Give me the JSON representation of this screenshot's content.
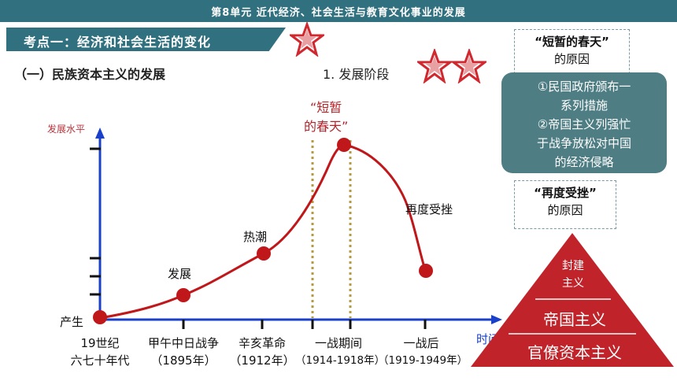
{
  "header": {
    "title": "第8单元  近代经济、社会生活与教育文化事业的发展"
  },
  "topic": {
    "label": "考点一：经济和社会生活的变化"
  },
  "section": {
    "title": "（一）民族资本主义的发展"
  },
  "stage": {
    "title": "1.  发展阶段"
  },
  "chart": {
    "ylabel": "发展水平",
    "xlabel": "时间",
    "origin_label": "产生",
    "peak_label": [
      "“短暂",
      "的春天”"
    ],
    "point_labels": [
      "发展",
      "热潮",
      "再度受挫"
    ],
    "x_labels": [
      {
        "line1": "19世纪",
        "line2": "六七十年代"
      },
      {
        "line1": "甲午中日战争",
        "line2": "（1895年）"
      },
      {
        "line1": "辛亥革命",
        "line2": "（1912年）"
      },
      {
        "line1": "一战期间",
        "line2": "（1914-1918年）"
      },
      {
        "line1": "一战后",
        "line2": "（1919-1949年）"
      }
    ],
    "colors": {
      "axis": "#1a3fc8",
      "curve": "#c0171b",
      "dotted": "#b59a3e"
    }
  },
  "boxes": {
    "short_spring": [
      "“短暂的春天”",
      "的原因"
    ],
    "reasons": [
      "①民国政府颁布一",
      "系列措施",
      "②帝国主义列强忙",
      "于战争放松对中国",
      "的经济侵略"
    ],
    "setback": [
      "“再度受挫”",
      "的原因"
    ]
  },
  "pyramid": {
    "top": [
      "封建",
      "主义"
    ],
    "middle": "帝国主义",
    "bottom": "官僚资本主义",
    "color": "#c0242a"
  }
}
